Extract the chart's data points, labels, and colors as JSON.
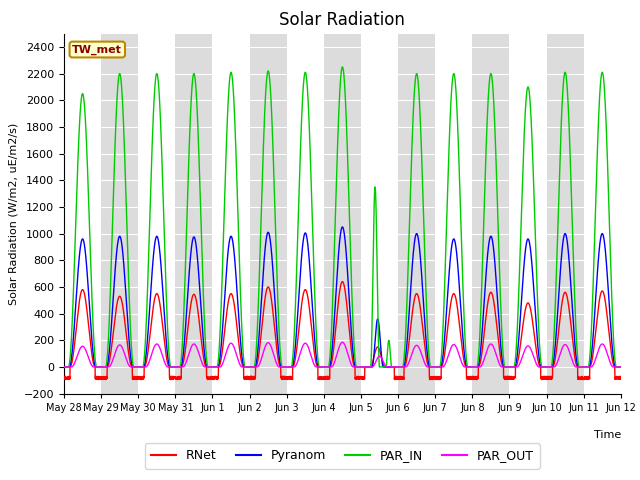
{
  "title": "Solar Radiation",
  "ylabel": "Solar Radiation (W/m2, uE/m2/s)",
  "xlabel": "Time",
  "ylim": [
    -200,
    2500
  ],
  "yticks": [
    -200,
    0,
    200,
    400,
    600,
    800,
    1000,
    1200,
    1400,
    1600,
    1800,
    2000,
    2200,
    2400
  ],
  "label_text": "TW_met",
  "label_facecolor": "#FFFFCC",
  "label_edgecolor": "#BB8800",
  "label_textcolor": "#880000",
  "series": {
    "RNet": {
      "color": "#FF0000",
      "lw": 1.0
    },
    "Pyranom": {
      "color": "#0000FF",
      "lw": 1.0
    },
    "PAR_IN": {
      "color": "#00CC00",
      "lw": 1.0
    },
    "PAR_OUT": {
      "color": "#FF00FF",
      "lw": 1.0
    }
  },
  "bg_band_color": "#DCDCDC",
  "n_days": 15,
  "pts_per_day": 288,
  "rnet_night": -80,
  "day_labels": [
    "May 28",
    "May 29",
    "May 30",
    "May 31",
    "Jun 1",
    "Jun 2",
    "Jun 3",
    "Jun 4",
    "Jun 5",
    "Jun 6",
    "Jun 7",
    "Jun 8",
    "Jun 9",
    "Jun 10",
    "Jun 11",
    "Jun 12"
  ]
}
